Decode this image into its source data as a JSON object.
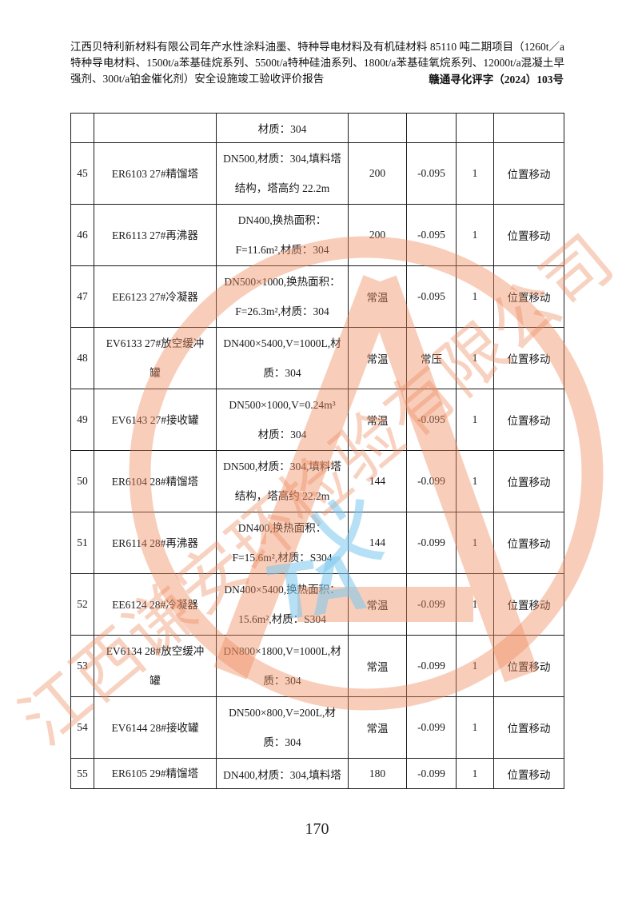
{
  "header": {
    "title": "江西贝特利新材料有限公司年产水性涂料油墨、特种导电材料及有机硅材料 85110 吨二期项目（1260t／a特种导电材料、1500t/a苯基硅烷系列、5500t/a特种硅油系列、1800t/a苯基硅氧烷系列、12000t/a混凝土早强剂、300t/a铂金催化剂）安全设施竣工验收评价报告",
    "doc_number": "赣通寻化评字（2024）103号"
  },
  "table": {
    "rows": [
      {
        "no": "",
        "name": "",
        "spec": "材质：304",
        "temp": "",
        "press": "",
        "qty": "",
        "note": ""
      },
      {
        "no": "45",
        "name": "ER6103 27#精馏塔",
        "spec": "DN500,材质：304,填料塔\n结构，塔高约 22.2m",
        "temp": "200",
        "press": "-0.095",
        "qty": "1",
        "note": "位置移动"
      },
      {
        "no": "46",
        "name": "ER6113 27#再沸器",
        "spec": "DN400,换热面积：\nF=11.6m²,材质：304",
        "temp": "200",
        "press": "-0.095",
        "qty": "1",
        "note": "位置移动"
      },
      {
        "no": "47",
        "name": "EE6123 27#冷凝器",
        "spec": "DN500×1000,换热面积：\nF=26.3m²,材质：304",
        "temp": "常温",
        "press": "-0.095",
        "qty": "1",
        "note": "位置移动"
      },
      {
        "no": "48",
        "name": "EV6133 27#放空缓冲\n罐",
        "spec": "DN400×5400,V=1000L,材\n质：304",
        "temp": "常温",
        "press": "常压",
        "qty": "1",
        "note": "位置移动"
      },
      {
        "no": "49",
        "name": "EV6143 27#接收罐",
        "spec": "DN500×1000,V=0.24m³\n材质：304",
        "temp": "常温",
        "press": "-0.095",
        "qty": "1",
        "note": "位置移动"
      },
      {
        "no": "50",
        "name": "ER6104 28#精馏塔",
        "spec": "DN500,材质：304,填料塔\n结构，塔高约 22.2m",
        "temp": "144",
        "press": "-0.099",
        "qty": "1",
        "note": "位置移动"
      },
      {
        "no": "51",
        "name": "ER6114 28#再沸器",
        "spec": "DN400,换热面积：\nF=15.6m²,材质：S304",
        "temp": "144",
        "press": "-0.099",
        "qty": "1",
        "note": "位置移动"
      },
      {
        "no": "52",
        "name": "EE6124 28#冷凝器",
        "spec": "DN400×5400,换热面积：\n15.6m²,材质：S304",
        "temp": "常温",
        "press": "-0.099",
        "qty": "1",
        "note": "位置移动"
      },
      {
        "no": "53",
        "name": "EV6134 28#放空缓冲\n罐",
        "spec": "DN800×1800,V=1000L,材\n质：304",
        "temp": "常温",
        "press": "-0.099",
        "qty": "1",
        "note": "位置移动"
      },
      {
        "no": "54",
        "name": "EV6144 28#接收罐",
        "spec": "DN500×800,V=200L,材\n质：304",
        "temp": "常温",
        "press": "-0.099",
        "qty": "1",
        "note": "位置移动"
      },
      {
        "no": "55",
        "name": "ER6105 29#精馏塔",
        "spec": "DN400,材质：304,填料塔",
        "temp": "180",
        "press": "-0.099",
        "qty": "1",
        "note": "位置移动"
      }
    ]
  },
  "footer": {
    "page_number": "170"
  },
  "watermark": {
    "company_text": "江西谦安环检验有限公司",
    "blue_glyph": "义",
    "blue_letters": "TA",
    "salmon_color": "#ee8a5e",
    "blue_color": "#7cc8ee"
  }
}
